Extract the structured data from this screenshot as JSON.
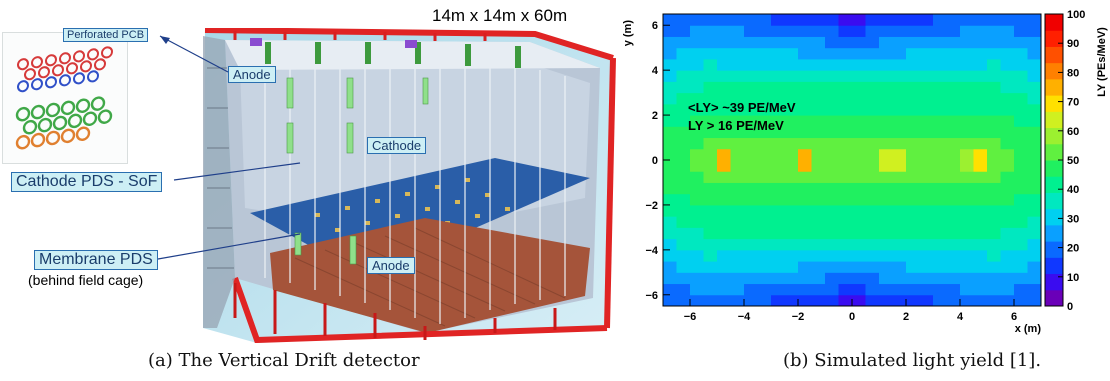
{
  "left_figure": {
    "dimensions": "14m x 14m x 60m",
    "labels": {
      "perforated_pcb": "Perforated PCB",
      "anode_top": "Anode",
      "cathode": "Cathode",
      "anode_bottom": "Anode",
      "cathode_pds": "Cathode PDS - SoF",
      "membrane_pds": "Membrane PDS",
      "membrane_note": "(behind field cage)"
    },
    "caption": "(a) The Vertical Drift detector"
  },
  "right_figure": {
    "caption": "(b) Simulated light yield [1].",
    "annotations": [
      "<LY> ~39 PE/MeV",
      "LY > 16 PE/MeV"
    ]
  },
  "chart_data": {
    "type": "heatmap",
    "xlabel": "x (m)",
    "ylabel": "y (m)",
    "xlim": [
      -7,
      7
    ],
    "ylim": [
      -6.5,
      6.5
    ],
    "xticks": [
      -6,
      -4,
      -2,
      0,
      2,
      4,
      6
    ],
    "xtick_labels": [
      "−6",
      "−4",
      "−2",
      "0",
      "2",
      "4",
      "6"
    ],
    "yticks": [
      -6,
      -4,
      -2,
      0,
      2,
      4,
      6
    ],
    "ytick_labels": [
      "−6",
      "−4",
      "−2",
      "0",
      "2",
      "4",
      "6"
    ],
    "colorbar": {
      "label": "LY (PEs/MeV)",
      "range": [
        0,
        100
      ],
      "ticks": [
        0,
        10,
        20,
        30,
        40,
        50,
        60,
        70,
        80,
        90,
        100
      ],
      "colors": [
        "#6a00b8",
        "#3a0cf0",
        "#1038ff",
        "#0a6aff",
        "#0aa0ff",
        "#00d0f0",
        "#00e8c0",
        "#00f090",
        "#20f060",
        "#60f040",
        "#9cf030",
        "#d0f020",
        "#ffe000",
        "#ffb000",
        "#ff8000",
        "#ff5000",
        "#ff2000",
        "#f00000"
      ]
    },
    "hot_spots_x": [
      -4.8,
      -1.7,
      1.5,
      4.6
    ],
    "hot_spot_y": 0,
    "hot_spot_ly": 80
  }
}
